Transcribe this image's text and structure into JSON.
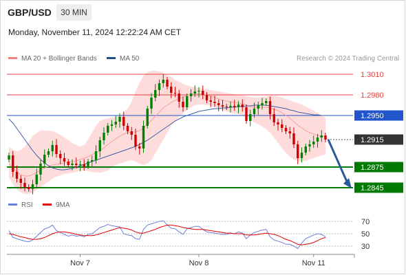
{
  "header": {
    "symbol": "GBP/USD",
    "interval": "30 MIN",
    "datetime": "Monday, November 11, 2024 12:22:24 AM CET"
  },
  "legend_main": [
    {
      "label": "MA 20 + Bollinger Bands",
      "color": "#f08080"
    },
    {
      "label": "MA 50",
      "color": "#1f4e8c"
    }
  ],
  "credit": "Research © 2024 Trading Central",
  "legend_rsi": [
    {
      "label": "RSI",
      "color": "#6a7fd8"
    },
    {
      "label": "9MA",
      "color": "#e00000"
    }
  ],
  "colors": {
    "up": "#008000",
    "down": "#cc0000",
    "resistance": "#e04040",
    "support": "#007a00",
    "pivot": "#2255cc",
    "arrow": "#2a5a9a",
    "band": "#ffd6d6"
  },
  "chart_data": [
    {
      "type": "candlestick",
      "x_ticks": [
        "Nov 7",
        "Nov 8",
        "Nov 11"
      ],
      "x_tick_index": [
        18,
        48,
        77
      ],
      "y_range": [
        1.2835,
        1.3025
      ],
      "levels": [
        {
          "value": 1.301,
          "label": "1.3010",
          "role": "resistance"
        },
        {
          "value": 1.298,
          "label": "1.2980",
          "role": "resistance"
        },
        {
          "value": 1.295,
          "label": "1.2950",
          "role": "pivot"
        },
        {
          "value": 1.2915,
          "label": "1.2915",
          "role": "last"
        },
        {
          "value": 1.2875,
          "label": "1.2875",
          "role": "support"
        },
        {
          "value": 1.2845,
          "label": "1.2845",
          "role": "support"
        }
      ],
      "close": [
        1.2892,
        1.2868,
        1.2858,
        1.2852,
        1.2846,
        1.2843,
        1.285,
        1.2864,
        1.288,
        1.2893,
        1.2898,
        1.2907,
        1.2894,
        1.2888,
        1.2883,
        1.2878,
        1.288,
        1.2878,
        1.2879,
        1.2876,
        1.2883,
        1.2885,
        1.2898,
        1.2914,
        1.2925,
        1.2935,
        1.2937,
        1.2941,
        1.2948,
        1.2935,
        1.2927,
        1.2922,
        1.2905,
        1.2902,
        1.2935,
        1.296,
        1.2976,
        1.2987,
        1.2997,
        1.3002,
        1.2992,
        1.2983,
        1.2982,
        1.297,
        1.2962,
        1.2978,
        1.2982,
        1.2985,
        1.2986,
        1.298,
        1.2972,
        1.297,
        1.2968,
        1.2965,
        1.2963,
        1.2962,
        1.2964,
        1.2962,
        1.2966,
        1.2962,
        1.2942,
        1.2952,
        1.296,
        1.2965,
        1.2968,
        1.2971,
        1.2952,
        1.294,
        1.2937,
        1.2932,
        1.2927,
        1.2924,
        1.2908,
        1.2888,
        1.2896,
        1.2905,
        1.2908,
        1.2912,
        1.2918,
        1.2921,
        1.2915
      ],
      "ma20": [
        1.288,
        1.2874,
        1.2868,
        1.2864,
        1.2862,
        1.2862,
        1.2864,
        1.2867,
        1.2871,
        1.2874,
        1.2876,
        1.2878,
        1.2879,
        1.288,
        1.2881,
        1.2882,
        1.2883,
        1.2884,
        1.2886,
        1.2888,
        1.289,
        1.2893,
        1.2896,
        1.2899,
        1.2903,
        1.2908,
        1.2912,
        1.2916,
        1.292,
        1.2923,
        1.2925,
        1.2926,
        1.2926,
        1.2928,
        1.2932,
        1.2937,
        1.2943,
        1.2949,
        1.2955,
        1.2961,
        1.2965,
        1.2969,
        1.2972,
        1.2975,
        1.2977,
        1.2979,
        1.2981,
        1.2982,
        1.2982,
        1.2981,
        1.298,
        1.2978,
        1.2976,
        1.2974,
        1.2972,
        1.2971,
        1.297,
        1.2969,
        1.2968,
        1.2967,
        1.2965,
        1.2963,
        1.2962,
        1.2962,
        1.2962,
        1.2962,
        1.2961,
        1.2959,
        1.2957,
        1.2954,
        1.295,
        1.2946,
        1.2941,
        1.2936,
        1.2932,
        1.2928,
        1.2925,
        1.2923,
        1.2921,
        1.292,
        1.2919
      ],
      "bb_upper": [
        1.2905,
        1.29,
        1.2898,
        1.29,
        1.2905,
        1.2912,
        1.292,
        1.2925,
        1.2928,
        1.2928,
        1.2928,
        1.2927,
        1.2925,
        1.2922,
        1.2918,
        1.2914,
        1.291,
        1.2907,
        1.2905,
        1.2907,
        1.2915,
        1.2925,
        1.2935,
        1.2942,
        1.2945,
        1.2946,
        1.2947,
        1.2948,
        1.295,
        1.2955,
        1.296,
        1.297,
        1.2985,
        1.2998,
        1.3008,
        1.3013,
        1.3015,
        1.3015,
        1.3014,
        1.3012,
        1.3009,
        1.3006,
        1.3002,
        1.2999,
        1.2996,
        1.2994,
        1.2992,
        1.2991,
        1.299,
        1.2989,
        1.2988,
        1.2987,
        1.2986,
        1.2985,
        1.2984,
        1.2983,
        1.2982,
        1.2981,
        1.298,
        1.2979,
        1.2978,
        1.2977,
        1.2976,
        1.2976,
        1.2977,
        1.2978,
        1.2979,
        1.2979,
        1.2978,
        1.2976,
        1.2974,
        1.2972,
        1.297,
        1.2968,
        1.2966,
        1.2963,
        1.296,
        1.2957,
        1.2954,
        1.295,
        1.2947
      ],
      "bb_lower": [
        1.286,
        1.285,
        1.2842,
        1.2838,
        1.2836,
        1.2836,
        1.2838,
        1.2842,
        1.2846,
        1.285,
        1.2854,
        1.2858,
        1.2861,
        1.2863,
        1.2865,
        1.2866,
        1.2867,
        1.2868,
        1.2869,
        1.287,
        1.2869,
        1.2868,
        1.2867,
        1.2867,
        1.2868,
        1.287,
        1.2874,
        1.2878,
        1.288,
        1.2882,
        1.2884,
        1.2885,
        1.2883,
        1.288,
        1.2878,
        1.288,
        1.2885,
        1.2895,
        1.2905,
        1.2915,
        1.2925,
        1.2935,
        1.2942,
        1.2948,
        1.2953,
        1.2958,
        1.2962,
        1.2965,
        1.2966,
        1.2966,
        1.2965,
        1.2964,
        1.2962,
        1.296,
        1.2958,
        1.2956,
        1.2954,
        1.2953,
        1.2952,
        1.295,
        1.2947,
        1.2944,
        1.294,
        1.2937,
        1.2934,
        1.293,
        1.2925,
        1.2918,
        1.291,
        1.2902,
        1.2896,
        1.289,
        1.2886,
        1.2884,
        1.2883,
        1.2884,
        1.2886,
        1.2888,
        1.289,
        1.2892,
        1.2893
      ],
      "ma50": [
        1.2945,
        1.2939,
        1.2931,
        1.2923,
        1.2915,
        1.2907,
        1.2899,
        1.2892,
        1.2886,
        1.2881,
        1.2877,
        1.2874,
        1.2872,
        1.2871,
        1.2871,
        1.2872,
        1.2873,
        1.2875,
        1.2877,
        1.2879,
        1.2881,
        1.2883,
        1.2885,
        1.2887,
        1.2889,
        1.2891,
        1.2893,
        1.2895,
        1.2897,
        1.2899,
        1.2901,
        1.2903,
        1.2905,
        1.2908,
        1.2911,
        1.2914,
        1.2918,
        1.2922,
        1.2926,
        1.293,
        1.2934,
        1.2938,
        1.2942,
        1.2945,
        1.2948,
        1.295,
        1.2952,
        1.2954,
        1.2956,
        1.2957,
        1.2958,
        1.2959,
        1.296,
        1.296,
        1.2961,
        1.2961,
        1.2962,
        1.2962,
        1.2963,
        1.2963,
        1.2964,
        1.2964,
        1.2965,
        1.2965,
        1.2965,
        1.2965,
        1.2964,
        1.2963,
        1.2962,
        1.2961,
        1.296,
        1.2958,
        1.2957,
        1.2955,
        1.2954,
        1.2953,
        1.2952,
        1.2951,
        1.2951,
        1.295,
        1.295
      ],
      "projection": {
        "from": 1.2915,
        "to": 1.2845
      }
    },
    {
      "type": "line",
      "name": "RSI panel",
      "y_range": [
        20,
        80
      ],
      "y_ticks": [
        70,
        50,
        30
      ],
      "rsi": [
        55,
        44,
        42,
        40,
        38,
        37,
        40,
        46,
        52,
        58,
        60,
        64,
        55,
        52,
        49,
        46,
        48,
        46,
        47,
        45,
        49,
        50,
        55,
        60,
        62,
        65,
        63,
        62,
        61,
        50,
        48,
        47,
        42,
        41,
        57,
        64,
        66,
        68,
        70,
        71,
        64,
        59,
        58,
        53,
        49,
        58,
        60,
        62,
        62,
        57,
        53,
        52,
        51,
        50,
        49,
        49,
        51,
        50,
        53,
        51,
        42,
        48,
        52,
        54,
        56,
        57,
        45,
        40,
        38,
        36,
        33,
        33,
        30,
        26,
        35,
        42,
        45,
        48,
        50,
        49,
        45
      ],
      "ma9": [
        50,
        49,
        47,
        45,
        44,
        42,
        41,
        41,
        42,
        44,
        47,
        50,
        52,
        53,
        53,
        52,
        51,
        49,
        48,
        47,
        47,
        47,
        48,
        50,
        52,
        54,
        56,
        58,
        60,
        59,
        58,
        56,
        53,
        51,
        51,
        53,
        55,
        57,
        60,
        62,
        64,
        64,
        63,
        62,
        60,
        59,
        58,
        57,
        57,
        57,
        56,
        55,
        54,
        53,
        52,
        51,
        51,
        50,
        50,
        50,
        48,
        48,
        48,
        49,
        50,
        51,
        50,
        49,
        47,
        44,
        41,
        39,
        36,
        33,
        32,
        33,
        34,
        36,
        39,
        42,
        44
      ]
    }
  ]
}
